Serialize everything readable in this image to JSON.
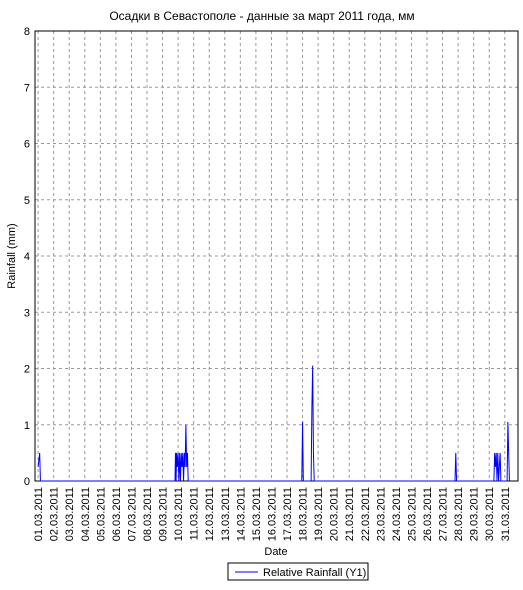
{
  "chart_data": {
    "type": "line",
    "title": "Осадки в Севастополе - данные за март 2011 года, мм",
    "x_label": "Date",
    "y_label": "Rainfall (mm)",
    "x": [
      1.0,
      1.1,
      1.15,
      9.8,
      9.83,
      9.87,
      9.9,
      9.95,
      10.0,
      10.05,
      10.1,
      10.15,
      10.2,
      10.25,
      10.3,
      10.35,
      10.4,
      10.45,
      10.5,
      10.55,
      10.6,
      10.65,
      17.95,
      18.0,
      18.05,
      18.55,
      18.6,
      18.65,
      18.7,
      18.75,
      27.8,
      27.85,
      27.9,
      30.3,
      30.35,
      30.4,
      30.45,
      30.5,
      30.55,
      30.6,
      30.7,
      30.75,
      31.15,
      31.2,
      31.25,
      31.3
    ],
    "series": [
      {
        "name": "Relative Rainfall (Y1)",
        "color": "#0000ff",
        "values": [
          0.25,
          0.5,
          0,
          0,
          0.5,
          0,
          0.5,
          0.25,
          0.5,
          0,
          0.5,
          0,
          0.5,
          0.25,
          0.5,
          0,
          0.5,
          0.25,
          1.0,
          0.25,
          0.5,
          0,
          0,
          1.05,
          0,
          0,
          1.3,
          2.05,
          0.5,
          0,
          0,
          0.5,
          0,
          0,
          0.5,
          0.25,
          0.5,
          0,
          0.5,
          0,
          0.5,
          0,
          0,
          1.05,
          0.5,
          0
        ]
      }
    ],
    "xlim": [
      0.8,
      31.85
    ],
    "ylim": [
      0,
      8
    ],
    "yticks": [
      0,
      1,
      2,
      3,
      4,
      5,
      6,
      7,
      8
    ],
    "xticks": [
      {
        "value": 1,
        "label": "01.03.2011"
      },
      {
        "value": 2,
        "label": "02.03.2011"
      },
      {
        "value": 3,
        "label": "03.03.2011"
      },
      {
        "value": 4,
        "label": "04.03.2011"
      },
      {
        "value": 5,
        "label": "05.03.2011"
      },
      {
        "value": 6,
        "label": "06.03.2011"
      },
      {
        "value": 7,
        "label": "07.03.2011"
      },
      {
        "value": 8,
        "label": "08.03.2011"
      },
      {
        "value": 9,
        "label": "09.03.2011"
      },
      {
        "value": 10,
        "label": "10.03.2011"
      },
      {
        "value": 11,
        "label": "11.03.2011"
      },
      {
        "value": 12,
        "label": "12.03.2011"
      },
      {
        "value": 13,
        "label": "13.03.2011"
      },
      {
        "value": 14,
        "label": "14.03.2011"
      },
      {
        "value": 15,
        "label": "15.03.2011"
      },
      {
        "value": 16,
        "label": "16.03.2011"
      },
      {
        "value": 17,
        "label": "17.03.2011"
      },
      {
        "value": 18,
        "label": "18.03.2011"
      },
      {
        "value": 19,
        "label": "19.03.2011"
      },
      {
        "value": 20,
        "label": "20.03.2011"
      },
      {
        "value": 21,
        "label": "21.03.2011"
      },
      {
        "value": 22,
        "label": "22.03.2011"
      },
      {
        "value": 23,
        "label": "23.03.2011"
      },
      {
        "value": 24,
        "label": "24.03.2011"
      },
      {
        "value": 25,
        "label": "25.03.2011"
      },
      {
        "value": 26,
        "label": "26.03.2011"
      },
      {
        "value": 27,
        "label": "27.03.2011"
      },
      {
        "value": 28,
        "label": "28.03.2011"
      },
      {
        "value": 29,
        "label": "29.03.2011"
      },
      {
        "value": 30,
        "label": "30.03.2011"
      },
      {
        "value": 31,
        "label": "31.03.2011"
      }
    ],
    "grid": true
  }
}
